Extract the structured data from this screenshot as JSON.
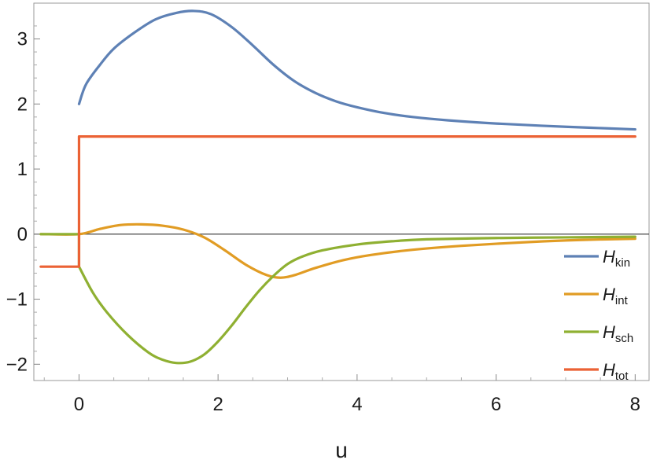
{
  "chart_data": {
    "type": "line",
    "xlabel": "u",
    "ylabel": "",
    "xlim": [
      -0.65,
      8.2
    ],
    "ylim": [
      -2.25,
      3.55
    ],
    "xticks": [
      0,
      2,
      4,
      6,
      8
    ],
    "yticks": [
      -2,
      -1,
      0,
      1,
      2,
      3
    ],
    "grid": false,
    "legend_position": "bottom-right",
    "series": [
      {
        "name": "H_kin",
        "legend_main": "H",
        "legend_sub": "kin",
        "color": "#5e81b5",
        "x": [
          -0.55,
          0,
          0,
          0.1,
          0.3,
          0.5,
          0.8,
          1.1,
          1.4,
          1.65,
          1.9,
          2.2,
          2.5,
          2.8,
          3.1,
          3.4,
          3.7,
          4.0,
          4.4,
          4.8,
          5.3,
          6.0,
          7.0,
          8.0
        ],
        "y": [
          null,
          null,
          2.0,
          2.3,
          2.6,
          2.85,
          3.1,
          3.3,
          3.4,
          3.43,
          3.38,
          3.18,
          2.9,
          2.6,
          2.35,
          2.17,
          2.04,
          1.95,
          1.86,
          1.8,
          1.75,
          1.7,
          1.65,
          1.61
        ]
      },
      {
        "name": "H_int",
        "legend_main": "H",
        "legend_sub": "int",
        "color": "#e19c24",
        "x": [
          -0.55,
          0,
          0.3,
          0.6,
          0.9,
          1.2,
          1.5,
          1.8,
          2.1,
          2.4,
          2.7,
          2.9,
          3.1,
          3.4,
          3.8,
          4.2,
          4.8,
          5.5,
          6.5,
          7.2,
          8.0
        ],
        "y": [
          0.0,
          0.0,
          0.08,
          0.14,
          0.15,
          0.13,
          0.07,
          -0.05,
          -0.25,
          -0.47,
          -0.63,
          -0.67,
          -0.63,
          -0.52,
          -0.4,
          -0.32,
          -0.24,
          -0.18,
          -0.12,
          -0.09,
          -0.07
        ]
      },
      {
        "name": "H_sch",
        "legend_main": "H",
        "legend_sub": "sch",
        "color": "#8fb032",
        "x": [
          -0.55,
          0,
          0,
          0.2,
          0.4,
          0.7,
          1.0,
          1.2,
          1.4,
          1.6,
          1.8,
          2.0,
          2.2,
          2.4,
          2.6,
          2.8,
          3.0,
          3.2,
          3.5,
          4.0,
          4.5,
          5.0,
          6.0,
          7.0,
          8.0
        ],
        "y": [
          0.0,
          0.0,
          -0.5,
          -0.9,
          -1.2,
          -1.55,
          -1.82,
          -1.93,
          -1.98,
          -1.96,
          -1.85,
          -1.65,
          -1.4,
          -1.12,
          -0.86,
          -0.64,
          -0.46,
          -0.35,
          -0.25,
          -0.16,
          -0.11,
          -0.08,
          -0.06,
          -0.05,
          -0.04
        ]
      },
      {
        "name": "H_tot",
        "legend_main": "H",
        "legend_sub": "tot",
        "color": "#eb6235",
        "x": [
          -0.55,
          0,
          0,
          1,
          2,
          3,
          4,
          5,
          6,
          7,
          8
        ],
        "y": [
          -0.5,
          -0.5,
          1.5,
          1.5,
          1.5,
          1.5,
          1.5,
          1.5,
          1.5,
          1.5,
          1.5
        ]
      }
    ]
  }
}
